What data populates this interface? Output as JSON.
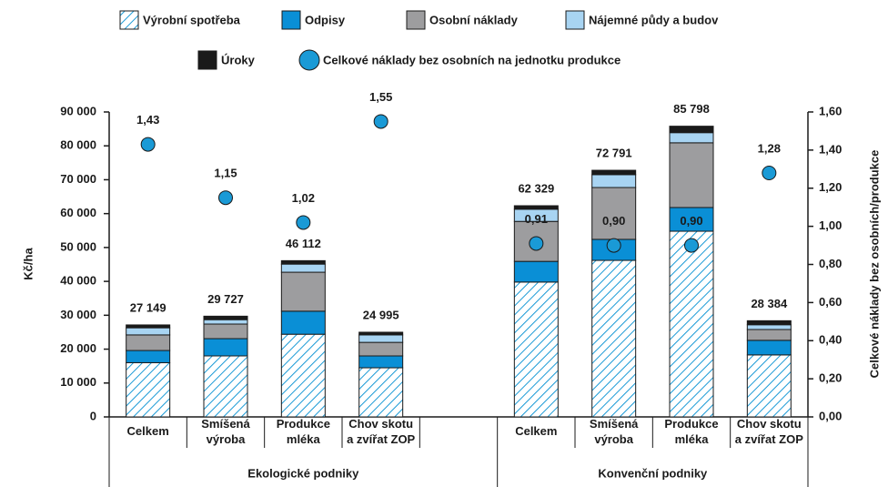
{
  "chart_data": {
    "type": "stacked_bar_scatter",
    "categories": [
      "Celkem",
      "Smíšená\nvýroba",
      "Produkce\nmléka",
      "Chov skotu\na zvířat ZOP",
      null,
      "Celkem",
      "Smíšená\nvýroba",
      "Produkce\nmléka",
      "Chov skotu\na zvířat ZOP"
    ],
    "groups": [
      {
        "label": "Ekologické podniky",
        "span": [
          0,
          4
        ]
      },
      {
        "label": "Konvenční podniky",
        "span": [
          5,
          8
        ]
      }
    ],
    "y_label": "Kč/ha",
    "y2_label": "Celkové náklady bez osobních/produkce",
    "ylim": [
      0,
      90000
    ],
    "yticks": [
      0,
      {
        "value": 10000,
        "label": "10 000"
      },
      {
        "value": 20000,
        "label": "20 000"
      },
      {
        "value": 30000,
        "label": "30 000"
      },
      {
        "value": 40000,
        "label": "40 000"
      },
      {
        "value": 50000,
        "label": "50 000"
      },
      {
        "value": 60000,
        "label": "60 000"
      },
      {
        "value": 70000,
        "label": "70 000"
      },
      {
        "value": 80000,
        "label": "80 000"
      },
      {
        "value": 90000,
        "label": "90 000"
      }
    ],
    "y2lim": [
      0,
      1.6
    ],
    "y2ticks": [
      {
        "value": 0,
        "label": "0,00"
      },
      {
        "value": 0.2,
        "label": "0,20"
      },
      {
        "value": 0.4,
        "label": "0,40"
      },
      {
        "value": 0.6,
        "label": "0,60"
      },
      {
        "value": 0.8,
        "label": "0,80"
      },
      {
        "value": 1.0,
        "label": "1,00"
      },
      {
        "value": 1.2,
        "label": "1,20"
      },
      {
        "value": 1.4,
        "label": "1,40"
      },
      {
        "value": 1.6,
        "label": "1,60"
      }
    ],
    "series": [
      {
        "name": "Výrobní spotřeba",
        "color": "#1a9ad6",
        "pattern": "hatch",
        "values": [
          16000,
          18000,
          24400,
          14500,
          null,
          39800,
          46200,
          54800,
          18300
        ]
      },
      {
        "name": "Odpisy",
        "color": "#0a8fd6",
        "values": [
          3600,
          5100,
          6800,
          3500,
          null,
          6100,
          6200,
          7000,
          4300
        ]
      },
      {
        "name": "Osobní náklady",
        "color": "#9d9d9f",
        "values": [
          4600,
          4300,
          11500,
          4000,
          null,
          11800,
          15300,
          19100,
          3200
        ]
      },
      {
        "name": "Nájemné půdy a budov",
        "color": "#a8d4f2",
        "values": [
          2100,
          1300,
          2400,
          2200,
          null,
          3600,
          3800,
          3000,
          1400
        ]
      },
      {
        "name": "Úroky",
        "color": "#1a1a1a",
        "values": [
          849,
          1027,
          1012,
          795,
          null,
          1029,
          1291,
          1898,
          1184
        ]
      },
      {
        "name": "Celkové náklady bez osobních na jednotku produkce",
        "color": "#1a9ad6",
        "type": "scatter",
        "axis": "y2",
        "values": [
          1.43,
          1.15,
          1.02,
          1.55,
          null,
          0.91,
          0.9,
          0.9,
          1.28
        ],
        "value_labels": [
          "1,43",
          "1,15",
          "1,02",
          "1,55",
          null,
          "0,91",
          "0,90",
          "0,90",
          "1,28"
        ],
        "label_colors": [
          "#1a9ad6",
          "#1a9ad6",
          "#1a9ad6",
          "#1a9ad6",
          null,
          "#ffffff",
          "#ffffff",
          "#ffffff",
          "#1a9ad6"
        ]
      }
    ],
    "totals": [
      27149,
      29727,
      46112,
      24995,
      null,
      62329,
      72791,
      85798,
      28384
    ],
    "total_labels": [
      "27 149",
      "29 727",
      "46 112",
      "24 995",
      null,
      "62 329",
      "72 791",
      "85 798",
      "28 384"
    ]
  }
}
